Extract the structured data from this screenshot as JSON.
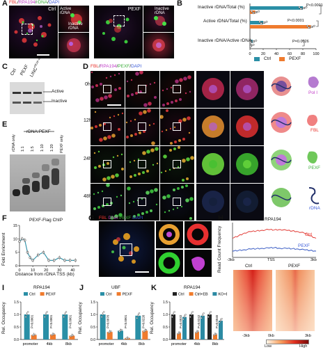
{
  "panel_letters": [
    "A",
    "B",
    "C",
    "D",
    "E",
    "F",
    "G",
    "H",
    "I",
    "J",
    "K"
  ],
  "panelA": {
    "stain": {
      "fbl": "FBL",
      "sep1": "/",
      "rpa": "RPA194",
      "sep2": "/",
      "rdna": "rDNA",
      "sep3": "/",
      "dapi": "DAPI"
    },
    "ctrl_label": "Ctrl",
    "pexf_label": "PEXF",
    "active_label": "Active rDNA",
    "inactive_label": "Inactive rDNA",
    "inactive_label2": "Inactive rDNA"
  },
  "panelB": {
    "row_labels": [
      "Inactive rDNA/Total (%)",
      "Active rDNA/Total (%)",
      "Inactive rDNA/Active rDNA"
    ],
    "pvalues": [
      "P<0.0001",
      "P<0.0001",
      "P=0.0026"
    ],
    "xticks": [
      "0",
      "20",
      "40",
      "60",
      "80",
      "100"
    ],
    "legend": [
      "Ctrl",
      "PEXF"
    ]
  },
  "panelC": {
    "lanes": [
      "Ctrl",
      "PEXF",
      "LINC"
    ],
    "lane3_super": "PEXF-KO",
    "band_labels": [
      "Active",
      "Inactive"
    ]
  },
  "panelD": {
    "stain": {
      "fbl": "FBL",
      "sep1": "/",
      "rpa": "RPA194",
      "sep2": "/",
      "pexf": "PEXF",
      "sep3": "/",
      "dapi": "DAPI"
    },
    "times": [
      "0h",
      "12h",
      "24h",
      "48h"
    ],
    "legend": [
      "Pol I",
      "FBL",
      "PEXF",
      "rDNA"
    ]
  },
  "panelE": {
    "header": "rDNA:PEXF",
    "lanes": [
      "rDNA only",
      "1:1",
      "1:5",
      "1:10",
      "1:20",
      "PEXF only"
    ]
  },
  "panelF": {
    "title": "PEXF-Flag ChIP",
    "ylabel": "Fold Enrichment",
    "xlabel": "Distance from rDNA TSS (kb)",
    "yticks": [
      "0",
      "5",
      "10",
      "15"
    ],
    "xticks": [
      "0",
      "10",
      "20",
      "30",
      "40"
    ]
  },
  "panelG": {
    "stain": {
      "fbl": "FBL",
      "sep1": "/",
      "dna": "DNA",
      "sep2": "/",
      "pexf": "PEXF",
      "sep3": "/",
      "dapi": "DAPI"
    }
  },
  "panelH": {
    "title": "RPA194",
    "ylabel": "Read Count Frequency",
    "xticks": [
      "-3kb",
      "TSS",
      "3kb"
    ],
    "legend": [
      "Ctrl",
      "PEXF"
    ],
    "heat_labels": [
      "Ctrl",
      "PEXF"
    ],
    "heat_ticks": [
      "-3kb",
      "0kb",
      "3kb"
    ],
    "scale_labels": [
      "Low",
      "High"
    ]
  },
  "panelI": {
    "title": "RPA194",
    "ylabel": "Rel. Occupancy",
    "legend": [
      "Ctrl",
      "PEXF"
    ],
    "categories": [
      "promoter",
      "4kb",
      "8kb"
    ],
    "yticks": [
      "0.0",
      "0.5",
      "1.0",
      "1.5"
    ],
    "pvalues": [
      "P<0.0001",
      "P<0.0001",
      "P<0.0001"
    ]
  },
  "panelJ": {
    "title": "UBF",
    "ylabel": "Rel. Occupancy",
    "legend": [
      "Ctrl",
      "PEXF"
    ],
    "categories": [
      "promoter",
      "4kb",
      "8kb"
    ],
    "yticks": [
      "0.0",
      "0.5",
      "1.0",
      "1.5"
    ],
    "pvalues": [
      "P=0.0076",
      "P<0.0001",
      "P=0.0226"
    ]
  },
  "panelK": {
    "title": "RPA194",
    "ylabel": "Rel. Occupancy",
    "legend": [
      "Ctrl",
      "Ctrl+EB",
      "KO+EB"
    ],
    "categories": [
      "promoter",
      "4kb",
      "8kb"
    ],
    "yticks": [
      "0.0",
      "0.5",
      "1.0",
      "1.5"
    ],
    "pvalues": [
      "P=0.0032",
      "P=0.0242",
      "P=0.0045"
    ]
  },
  "colors": {
    "ctrl": "#2a8fa6",
    "pexf": "#ef7b2e",
    "ctrl_eb": "#f07c2c",
    "ko_eb": "#2c8aa3",
    "black": "#222222"
  },
  "chart_data": [
    {
      "panel": "B",
      "type": "bar",
      "orientation": "horizontal",
      "categories": [
        "Inactive rDNA/Total (%)",
        "Active rDNA/Total (%)",
        "Inactive rDNA/Active rDNA"
      ],
      "series": [
        {
          "name": "Ctrl",
          "values": [
            80,
            20,
            4
          ]
        },
        {
          "name": "PEXF",
          "values": [
            8,
            92,
            0.1
          ]
        }
      ],
      "xlim": [
        0,
        100
      ]
    },
    {
      "panel": "F",
      "type": "line",
      "x": [
        0,
        2,
        4,
        6,
        8,
        10,
        14,
        18,
        22,
        26,
        30,
        34,
        38,
        42
      ],
      "y": [
        9,
        10,
        9.5,
        5,
        3,
        2,
        4,
        5,
        2,
        2,
        3,
        2,
        2,
        2
      ],
      "ylim": [
        0,
        15
      ],
      "xlim": [
        0,
        45
      ]
    },
    {
      "panel": "H",
      "type": "line",
      "series": [
        {
          "name": "Ctrl",
          "values": [
            0.55,
            0.62,
            0.7,
            0.74,
            0.76,
            0.78,
            0.8,
            0.79,
            0.8,
            0.78,
            0.76,
            0.74,
            0.7,
            0.62,
            0.55
          ]
        },
        {
          "name": "PEXF",
          "values": [
            0.18,
            0.2,
            0.22,
            0.24,
            0.25,
            0.26,
            0.27,
            0.28,
            0.26,
            0.26,
            0.25,
            0.24,
            0.22,
            0.2,
            0.18
          ]
        }
      ]
    },
    {
      "panel": "I",
      "type": "bar",
      "categories": [
        "promoter",
        "4kb",
        "8kb"
      ],
      "series": [
        {
          "name": "Ctrl",
          "values": [
            1.0,
            1.0,
            1.0
          ]
        },
        {
          "name": "PEXF",
          "values": [
            0.18,
            0.2,
            0.15
          ]
        }
      ],
      "ylim": [
        0,
        1.5
      ]
    },
    {
      "panel": "J",
      "type": "bar",
      "categories": [
        "promoter",
        "4kb",
        "8kb"
      ],
      "series": [
        {
          "name": "Ctrl",
          "values": [
            1.0,
            0.35,
            0.95
          ]
        },
        {
          "name": "PEXF",
          "values": [
            0.3,
            0.05,
            0.35
          ]
        }
      ],
      "ylim": [
        0,
        1.5
      ]
    },
    {
      "panel": "K",
      "type": "bar",
      "categories": [
        "promoter",
        "4kb",
        "8kb"
      ],
      "series": [
        {
          "name": "Ctrl",
          "values": [
            1.0,
            1.0,
            1.0
          ]
        },
        {
          "name": "Ctrl+EB",
          "values": [
            0.25,
            0.3,
            0.2
          ]
        },
        {
          "name": "KO+EB",
          "values": [
            0.9,
            0.95,
            0.75
          ]
        }
      ],
      "ylim": [
        0,
        1.5
      ]
    }
  ]
}
